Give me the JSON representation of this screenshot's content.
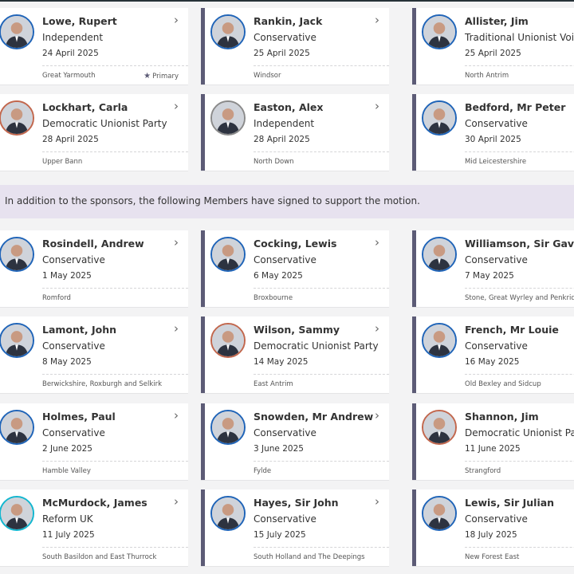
{
  "sponsors": [
    {
      "name": "Lowe, Rupert",
      "party": "Independent",
      "date": "24 April 2025",
      "constituency": "Great Yarmouth",
      "primary": "Primary",
      "avatar_color": "#1f64b8"
    },
    {
      "name": "Rankin, Jack",
      "party": "Conservative",
      "date": "25 April 2025",
      "constituency": "Windsor",
      "avatar_color": "#1f64b8"
    },
    {
      "name": "Allister, Jim",
      "party": "Traditional Unionist Voice",
      "date": "25 April 2025",
      "constituency": "North Antrim",
      "avatar_color": "#1f64b8"
    },
    {
      "name": "Lockhart, Carla",
      "party": "Democratic Unionist Party",
      "date": "28 April 2025",
      "constituency": "Upper Bann",
      "avatar_color": "#c2674d"
    },
    {
      "name": "Easton, Alex",
      "party": "Independent",
      "date": "28 April 2025",
      "constituency": "North Down",
      "avatar_color": "#8a8a8a"
    },
    {
      "name": "Bedford, Mr Peter",
      "party": "Conservative",
      "date": "30 April 2025",
      "constituency": "Mid Leicestershire",
      "avatar_color": "#1f64b8"
    }
  ],
  "notice": "In addition to the sponsors, the following Members have signed to support the motion.",
  "supporters": [
    {
      "name": "Rosindell, Andrew",
      "party": "Conservative",
      "date": "1 May 2025",
      "constituency": "Romford",
      "avatar_color": "#1f64b8"
    },
    {
      "name": "Cocking, Lewis",
      "party": "Conservative",
      "date": "6 May 2025",
      "constituency": "Broxbourne",
      "avatar_color": "#1f64b8"
    },
    {
      "name": "Williamson, Sir Gavin",
      "party": "Conservative",
      "date": "7 May 2025",
      "constituency": "Stone, Great Wyrley and Penkridge",
      "avatar_color": "#1f64b8"
    },
    {
      "name": "Lamont, John",
      "party": "Conservative",
      "date": "8 May 2025",
      "constituency": "Berwickshire, Roxburgh and Selkirk",
      "avatar_color": "#1f64b8"
    },
    {
      "name": "Wilson, Sammy",
      "party": "Democratic Unionist Party",
      "date": "14 May 2025",
      "constituency": "East Antrim",
      "avatar_color": "#c2674d"
    },
    {
      "name": "French, Mr Louie",
      "party": "Conservative",
      "date": "16 May 2025",
      "constituency": "Old Bexley and Sidcup",
      "avatar_color": "#1f64b8"
    },
    {
      "name": "Holmes, Paul",
      "party": "Conservative",
      "date": "2 June 2025",
      "constituency": "Hamble Valley",
      "avatar_color": "#1f64b8"
    },
    {
      "name": "Snowden, Mr Andrew",
      "party": "Conservative",
      "date": "3 June 2025",
      "constituency": "Fylde",
      "avatar_color": "#1f64b8"
    },
    {
      "name": "Shannon, Jim",
      "party": "Democratic Unionist Party",
      "date": "11 June 2025",
      "constituency": "Strangford",
      "avatar_color": "#c2674d"
    },
    {
      "name": "McMurdock, James",
      "party": "Reform UK",
      "date": "11 July 2025",
      "constituency": "South Basildon and East Thurrock",
      "avatar_color": "#12b6cf"
    },
    {
      "name": "Hayes, Sir John",
      "party": "Conservative",
      "date": "15 July 2025",
      "constituency": "South Holland and The Deepings",
      "avatar_color": "#1f64b8"
    },
    {
      "name": "Lewis, Sir Julian",
      "party": "Conservative",
      "date": "18 July 2025",
      "constituency": "New Forest East",
      "avatar_color": "#1f64b8"
    }
  ]
}
